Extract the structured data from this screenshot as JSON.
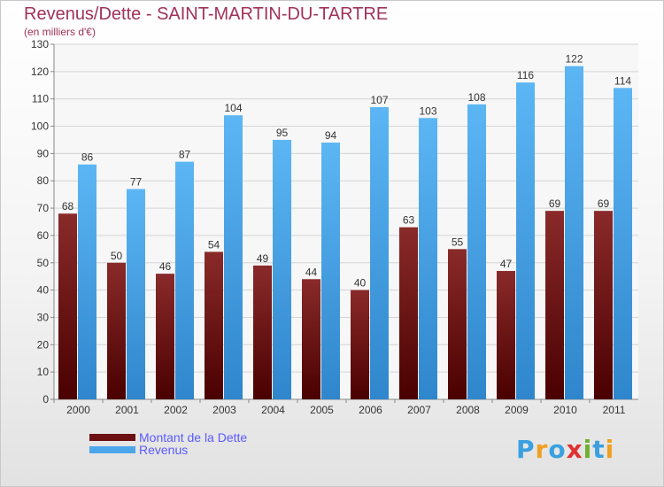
{
  "title": "Revenus/Dette - SAINT-MARTIN-DU-TARTRE",
  "subtitle": "(en milliers d'€)",
  "colors": {
    "title": "#a0325a",
    "debt": "#6b0f12",
    "revenue": "#4da6ea",
    "legend_text": "#5a5aff"
  },
  "legend": {
    "debt_label": "Montant de la Dette",
    "revenue_label": "Revenus"
  },
  "logo": {
    "letters": [
      "P",
      "r",
      "o",
      "x",
      "i",
      "t",
      "i"
    ],
    "colors": [
      "#3aa0e0",
      "#f0a020",
      "#3aa0e0",
      "#e03030",
      "#70b030",
      "#3aa0e0",
      "#f0a020"
    ]
  },
  "chart_data": {
    "type": "bar",
    "categories": [
      "2000",
      "2001",
      "2002",
      "2003",
      "2004",
      "2005",
      "2006",
      "2007",
      "2008",
      "2009",
      "2010",
      "2011"
    ],
    "series": [
      {
        "name": "Montant de la Dette",
        "values": [
          68,
          50,
          46,
          54,
          49,
          44,
          40,
          63,
          55,
          47,
          69,
          69
        ]
      },
      {
        "name": "Revenus",
        "values": [
          86,
          77,
          87,
          104,
          95,
          94,
          107,
          103,
          108,
          116,
          122,
          114
        ]
      }
    ],
    "ylim": [
      0,
      130
    ],
    "yticks": [
      0,
      10,
      20,
      30,
      40,
      50,
      60,
      70,
      80,
      90,
      100,
      110,
      120,
      130
    ],
    "grid": true,
    "data_labels": true,
    "legend_position": "bottom-left"
  }
}
